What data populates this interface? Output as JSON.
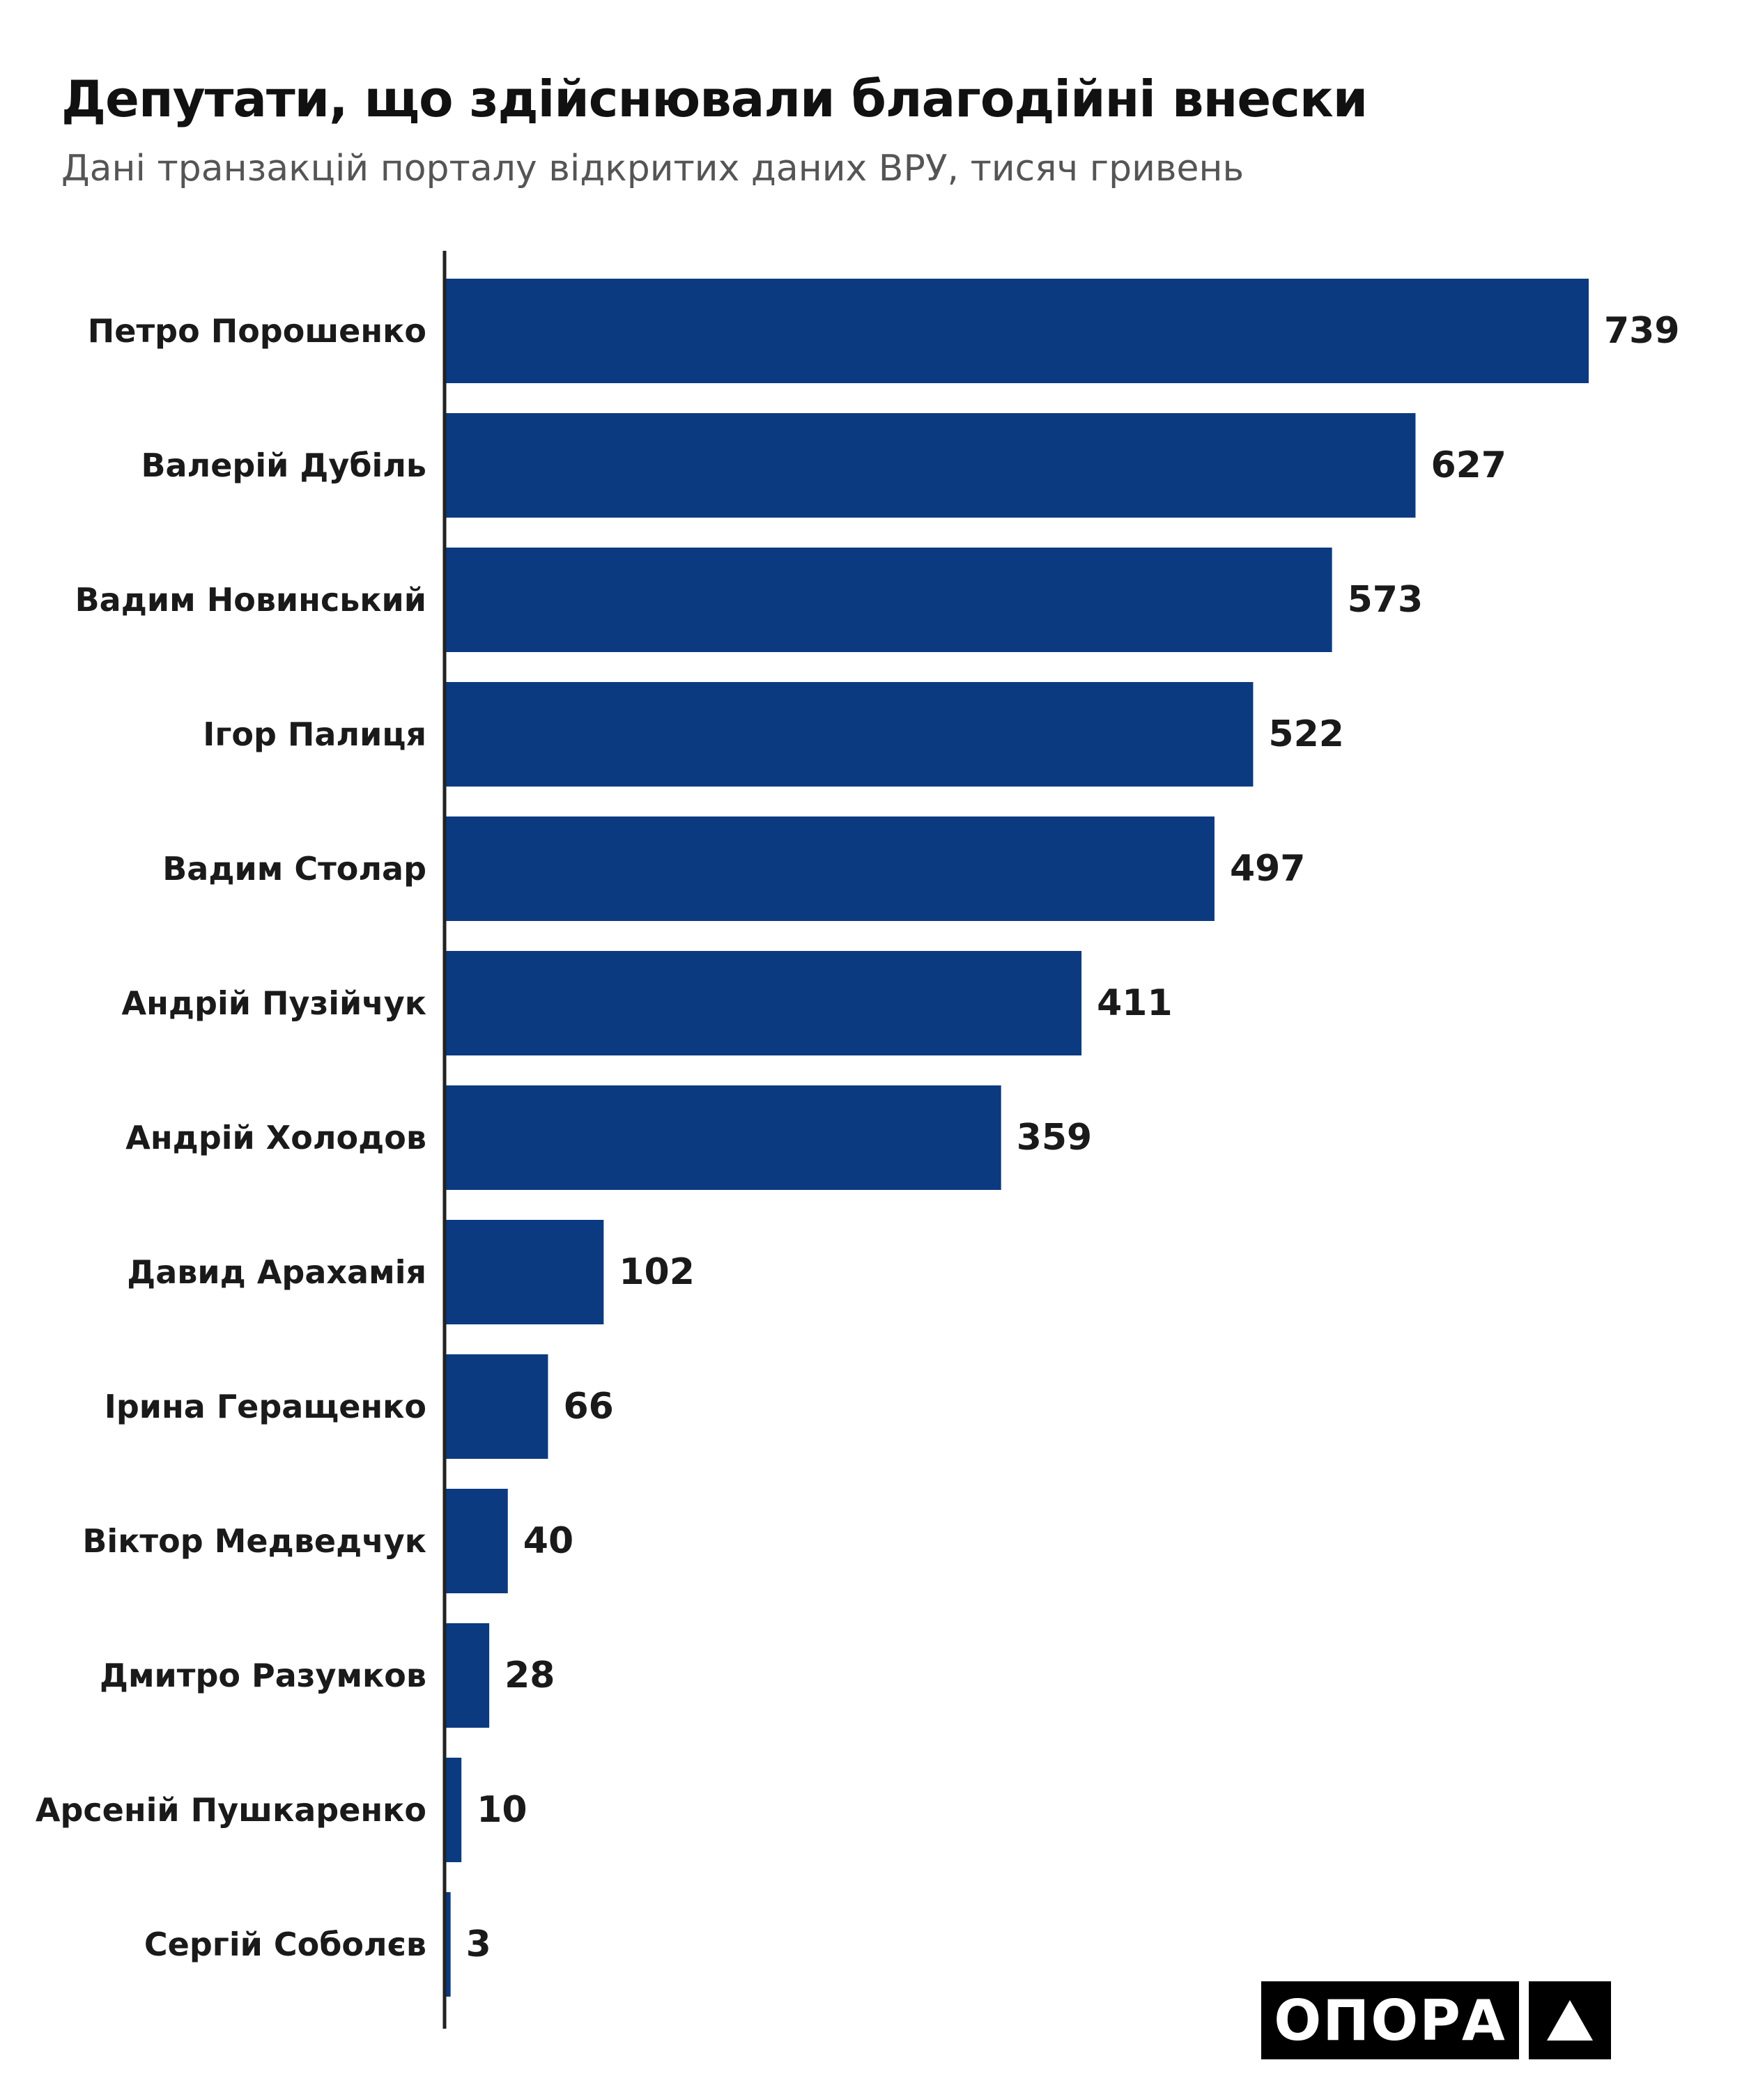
{
  "title": "Депутати, що здійснювали благодійні внески",
  "subtitle": "Дані транзакцій порталу відкритих даних ВРУ, тисяч гривень",
  "logo": {
    "text": "ОПОРА",
    "mark_icon": "triangle-icon"
  },
  "colors": {
    "bar": "#0b3a80",
    "axis": "#222222",
    "text": "#1a1a1a",
    "subtitle": "#555555"
  },
  "chart_data": {
    "type": "bar",
    "orientation": "horizontal",
    "title": "Депутати, що здійснювали благодійні внески",
    "subtitle": "Дані транзакцій порталу відкритих даних ВРУ, тисяч гривень",
    "categories": [
      "Петро Порошенко",
      "Валерій Дубіль",
      "Вадим Новинський",
      "Ігор Палиця",
      "Вадим Столар",
      "Андрій Пузійчук",
      "Андрій Холодов",
      "Давид Арахамія",
      "Ірина Геращенко",
      "Віктор Медведчук",
      "Дмитро Разумков",
      "Арсеній Пушкаренко",
      "Сергій Соболєв"
    ],
    "values": [
      739,
      627,
      573,
      522,
      497,
      411,
      359,
      102,
      66,
      40,
      28,
      10,
      3
    ],
    "data_labels": [
      "739",
      "627",
      "573",
      "522",
      "497",
      "411",
      "359",
      "102",
      "66",
      "40",
      "28",
      "10",
      "3"
    ],
    "xlim": [
      0,
      739
    ],
    "grid": false,
    "legend": "none"
  }
}
